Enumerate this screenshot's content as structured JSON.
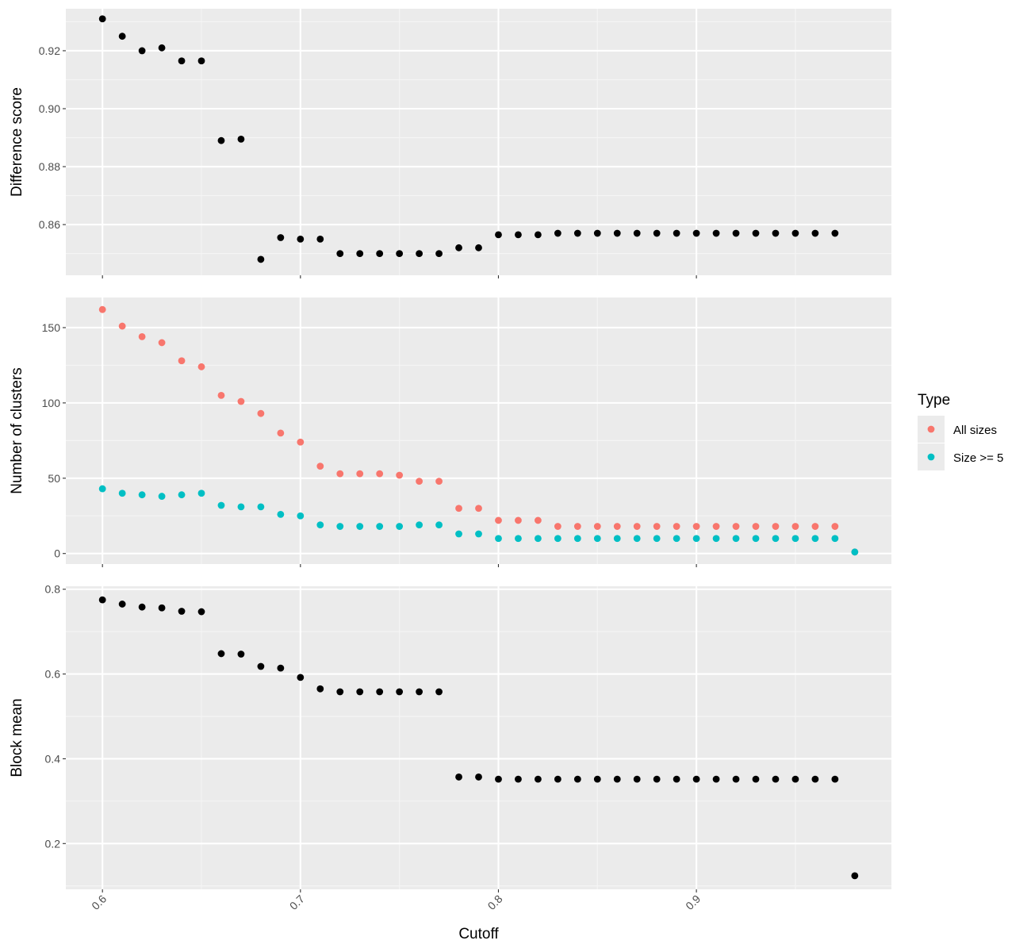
{
  "colors": {
    "panel_background": "#ebebeb",
    "grid_major": "#ffffff",
    "grid_minor": "#f5f5f5",
    "point_black": "#000000",
    "all_sizes": "#f8766d",
    "size_ge_5": "#00bfc4",
    "tick": "#333333"
  },
  "x_axis": {
    "title": "Cutoff",
    "range": [
      0.5815,
      0.9985
    ],
    "ticks": [
      0.6,
      0.7,
      0.8,
      0.9
    ],
    "tick_labels": [
      "0.6",
      "0.7",
      "0.8",
      "0.9"
    ],
    "tick_label_rotation": "-45 degrees",
    "minor_ticks": [
      0.65,
      0.75,
      0.85,
      0.95
    ]
  },
  "legend": {
    "title": "Type",
    "items": [
      {
        "label": "All sizes",
        "color": "#f8766d"
      },
      {
        "label": "Size >= 5",
        "color": "#00bfc4"
      }
    ],
    "placement": "right"
  },
  "chart_data": [
    {
      "type": "scatter",
      "ylabel": "Difference score",
      "xlabel": "Cutoff",
      "ylim": [
        0.8425,
        0.9345
      ],
      "yticks": [
        0.86,
        0.88,
        0.9,
        0.92
      ],
      "ytick_labels": [
        "0.86",
        "0.88",
        "0.90",
        "0.92"
      ],
      "yminor": [
        0.85,
        0.87,
        0.89,
        0.91,
        0.93
      ],
      "grid": true,
      "series": [
        {
          "color": "#000000",
          "x": [
            0.6,
            0.61,
            0.62,
            0.63,
            0.64,
            0.65,
            0.66,
            0.67,
            0.68,
            0.69,
            0.7,
            0.71,
            0.72,
            0.73,
            0.74,
            0.75,
            0.76,
            0.77,
            0.78,
            0.79,
            0.8,
            0.81,
            0.82,
            0.83,
            0.84,
            0.85,
            0.86,
            0.87,
            0.88,
            0.89,
            0.9,
            0.91,
            0.92,
            0.93,
            0.94,
            0.95,
            0.96,
            0.97
          ],
          "y": [
            0.931,
            0.925,
            0.92,
            0.921,
            0.9165,
            0.9165,
            0.889,
            0.8895,
            0.848,
            0.8555,
            0.855,
            0.855,
            0.85,
            0.85,
            0.85,
            0.85,
            0.85,
            0.85,
            0.852,
            0.852,
            0.8565,
            0.8565,
            0.8565,
            0.857,
            0.857,
            0.857,
            0.857,
            0.857,
            0.857,
            0.857,
            0.857,
            0.857,
            0.857,
            0.857,
            0.857,
            0.857,
            0.857,
            0.857
          ]
        }
      ]
    },
    {
      "type": "scatter",
      "ylabel": "Number of clusters",
      "xlabel": "Cutoff",
      "ylim": [
        -7,
        170
      ],
      "yticks": [
        0,
        50,
        100,
        150
      ],
      "ytick_labels": [
        "0",
        "50",
        "100",
        "150"
      ],
      "yminor": [
        25,
        75,
        125
      ],
      "grid": true,
      "series": [
        {
          "name": "All sizes",
          "color": "#f8766d",
          "x": [
            0.6,
            0.61,
            0.62,
            0.63,
            0.64,
            0.65,
            0.66,
            0.67,
            0.68,
            0.69,
            0.7,
            0.71,
            0.72,
            0.73,
            0.74,
            0.75,
            0.76,
            0.77,
            0.78,
            0.79,
            0.8,
            0.81,
            0.82,
            0.83,
            0.84,
            0.85,
            0.86,
            0.87,
            0.88,
            0.89,
            0.9,
            0.91,
            0.92,
            0.93,
            0.94,
            0.95,
            0.96,
            0.97,
            0.98
          ],
          "y": [
            162,
            151,
            144,
            140,
            128,
            124,
            105,
            101,
            93,
            80,
            74,
            58,
            53,
            53,
            53,
            52,
            48,
            48,
            30,
            30,
            22,
            22,
            22,
            18,
            18,
            18,
            18,
            18,
            18,
            18,
            18,
            18,
            18,
            18,
            18,
            18,
            18,
            18,
            1
          ]
        },
        {
          "name": "Size >= 5",
          "color": "#00bfc4",
          "x": [
            0.6,
            0.61,
            0.62,
            0.63,
            0.64,
            0.65,
            0.66,
            0.67,
            0.68,
            0.69,
            0.7,
            0.71,
            0.72,
            0.73,
            0.74,
            0.75,
            0.76,
            0.77,
            0.78,
            0.79,
            0.8,
            0.81,
            0.82,
            0.83,
            0.84,
            0.85,
            0.86,
            0.87,
            0.88,
            0.89,
            0.9,
            0.91,
            0.92,
            0.93,
            0.94,
            0.95,
            0.96,
            0.97,
            0.98
          ],
          "y": [
            43,
            40,
            39,
            38,
            39,
            40,
            32,
            31,
            31,
            26,
            25,
            19,
            18,
            18,
            18,
            18,
            19,
            19,
            13,
            13,
            10,
            10,
            10,
            10,
            10,
            10,
            10,
            10,
            10,
            10,
            10,
            10,
            10,
            10,
            10,
            10,
            10,
            10,
            1
          ]
        }
      ]
    },
    {
      "type": "scatter",
      "ylabel": "Block mean",
      "xlabel": "Cutoff",
      "ylim": [
        0.092,
        0.807
      ],
      "yticks": [
        0.2,
        0.4,
        0.6,
        0.8
      ],
      "ytick_labels": [
        "0.2",
        "0.4",
        "0.6",
        "0.8"
      ],
      "yminor": [
        0.1,
        0.3,
        0.5,
        0.7
      ],
      "grid": true,
      "series": [
        {
          "color": "#000000",
          "x": [
            0.6,
            0.61,
            0.62,
            0.63,
            0.64,
            0.65,
            0.66,
            0.67,
            0.68,
            0.69,
            0.7,
            0.71,
            0.72,
            0.73,
            0.74,
            0.75,
            0.76,
            0.77,
            0.78,
            0.79,
            0.8,
            0.81,
            0.82,
            0.83,
            0.84,
            0.85,
            0.86,
            0.87,
            0.88,
            0.89,
            0.9,
            0.91,
            0.92,
            0.93,
            0.94,
            0.95,
            0.96,
            0.97,
            0.98
          ],
          "y": [
            0.775,
            0.765,
            0.758,
            0.756,
            0.748,
            0.747,
            0.648,
            0.647,
            0.618,
            0.614,
            0.592,
            0.565,
            0.558,
            0.558,
            0.558,
            0.558,
            0.558,
            0.558,
            0.357,
            0.357,
            0.352,
            0.352,
            0.352,
            0.352,
            0.352,
            0.352,
            0.352,
            0.352,
            0.352,
            0.352,
            0.352,
            0.352,
            0.352,
            0.352,
            0.352,
            0.352,
            0.352,
            0.352,
            0.124
          ]
        }
      ]
    }
  ]
}
